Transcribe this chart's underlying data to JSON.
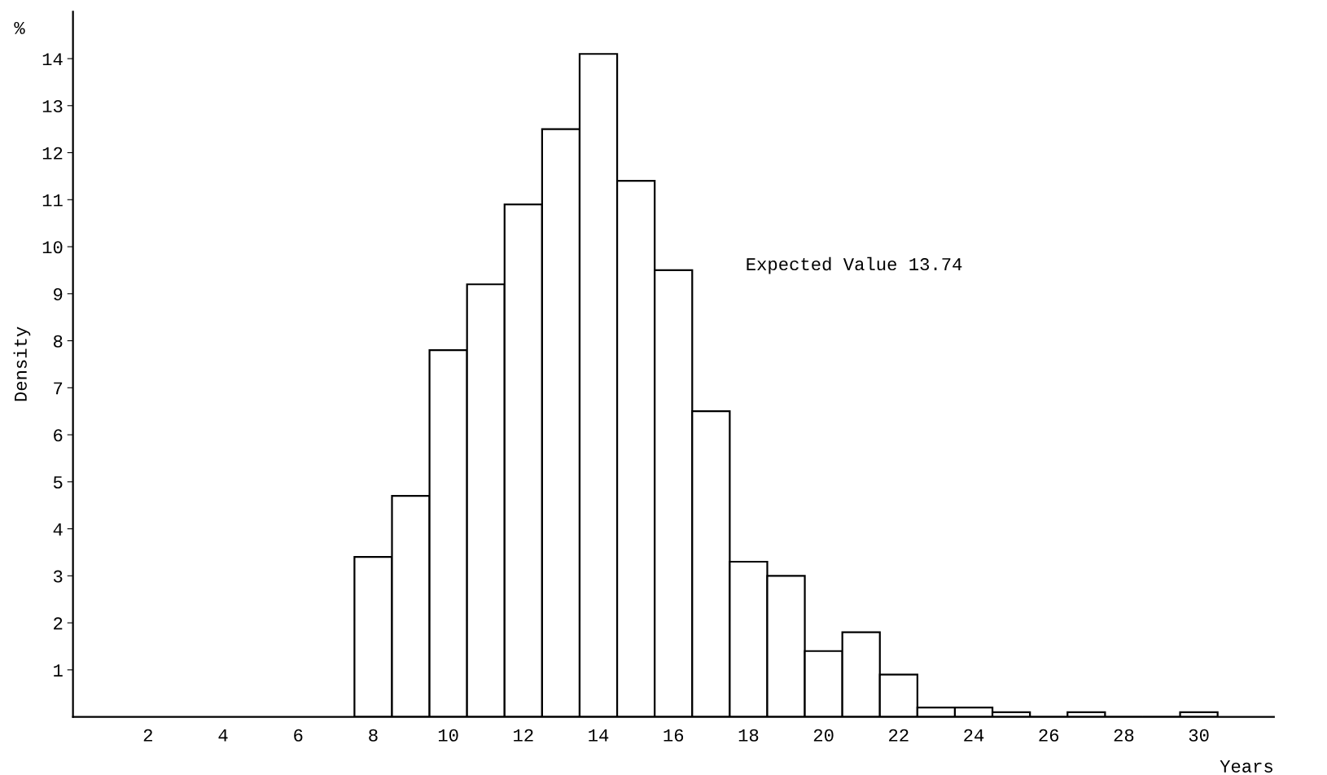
{
  "chart_data": {
    "type": "histogram",
    "xlabel": "Years",
    "ylabel": "Density",
    "annotations": [
      "%",
      "Expected Value 13.74"
    ],
    "bins": [
      7.5,
      8.5,
      9.5,
      10.5,
      11.5,
      12.5,
      13.5,
      14.5,
      15.5,
      16.5,
      17.5,
      18.5,
      19.5,
      20.5,
      21.5,
      22.5,
      23.5,
      24.5,
      25.5,
      26.5,
      27.5,
      28.5,
      29.5,
      30.5
    ],
    "values": [
      3.4,
      4.7,
      7.8,
      9.2,
      10.9,
      12.5,
      14.1,
      11.4,
      9.5,
      6.5,
      3.3,
      3.0,
      1.4,
      1.8,
      0.9,
      0.2,
      0.2,
      0.1,
      0,
      0.1,
      0,
      0,
      0.1
    ],
    "color": "#ffffff",
    "xlim": [
      0,
      32
    ],
    "xticks": [
      2,
      4,
      6,
      8,
      10,
      12,
      14,
      16,
      18,
      20,
      22,
      24,
      26,
      28,
      30
    ],
    "ylim": [
      0,
      15
    ],
    "yticks": [
      1,
      2,
      3,
      4,
      5,
      6,
      7,
      8,
      9,
      10,
      11,
      12,
      13,
      14
    ],
    "grid": false,
    "legend": false
  }
}
